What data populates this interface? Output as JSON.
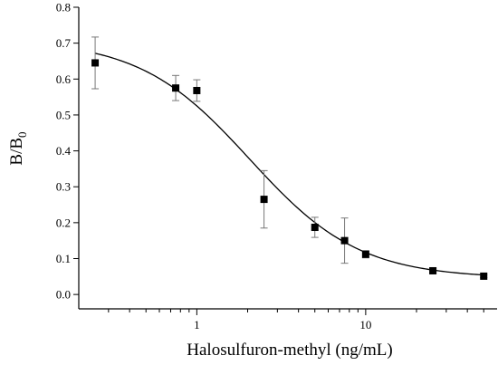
{
  "chart_data": {
    "type": "scatter",
    "xlabel": "Halosulfuron-methyl (ng/mL)",
    "ylabel": {
      "main": "B/B",
      "subscript": "0"
    },
    "x_scale": "log",
    "xlim": [
      0.2,
      60
    ],
    "ylim": [
      -0.04,
      0.8
    ],
    "y_ticks": [
      0.0,
      0.1,
      0.2,
      0.3,
      0.4,
      0.5,
      0.6,
      0.7,
      0.8
    ],
    "y_tick_labels": [
      "0.0",
      "0.1",
      "0.2",
      "0.3",
      "0.4",
      "0.5",
      "0.6",
      "0.7",
      "0.8"
    ],
    "x_major_ticks": [
      1,
      10
    ],
    "x_major_tick_labels": [
      "1",
      "10"
    ],
    "x_minor_ticks": [
      0.3,
      0.4,
      0.5,
      0.6,
      0.7,
      0.8,
      0.9,
      2,
      3,
      4,
      5,
      6,
      7,
      8,
      9,
      20,
      30,
      40,
      50
    ],
    "grid": false,
    "marker": "square",
    "marker_color": "#000000",
    "errorbar_color": "#777777",
    "line_color": "#000000",
    "points": [
      {
        "x": 0.25,
        "y": 0.645,
        "err": 0.072
      },
      {
        "x": 0.75,
        "y": 0.575,
        "err": 0.035
      },
      {
        "x": 1.0,
        "y": 0.568,
        "err": 0.03
      },
      {
        "x": 2.5,
        "y": 0.265,
        "err": 0.08
      },
      {
        "x": 5.0,
        "y": 0.187,
        "err": 0.028
      },
      {
        "x": 7.5,
        "y": 0.15,
        "err": 0.063
      },
      {
        "x": 10,
        "y": 0.112,
        "err": 0.01
      },
      {
        "x": 25,
        "y": 0.066,
        "err": 0.005
      },
      {
        "x": 50,
        "y": 0.051,
        "err": 0.004
      }
    ],
    "fit": {
      "model": "four-parameter logistic",
      "top": 0.71,
      "bottom": 0.045,
      "ic50": 2.05,
      "hill": 1.33
    }
  }
}
